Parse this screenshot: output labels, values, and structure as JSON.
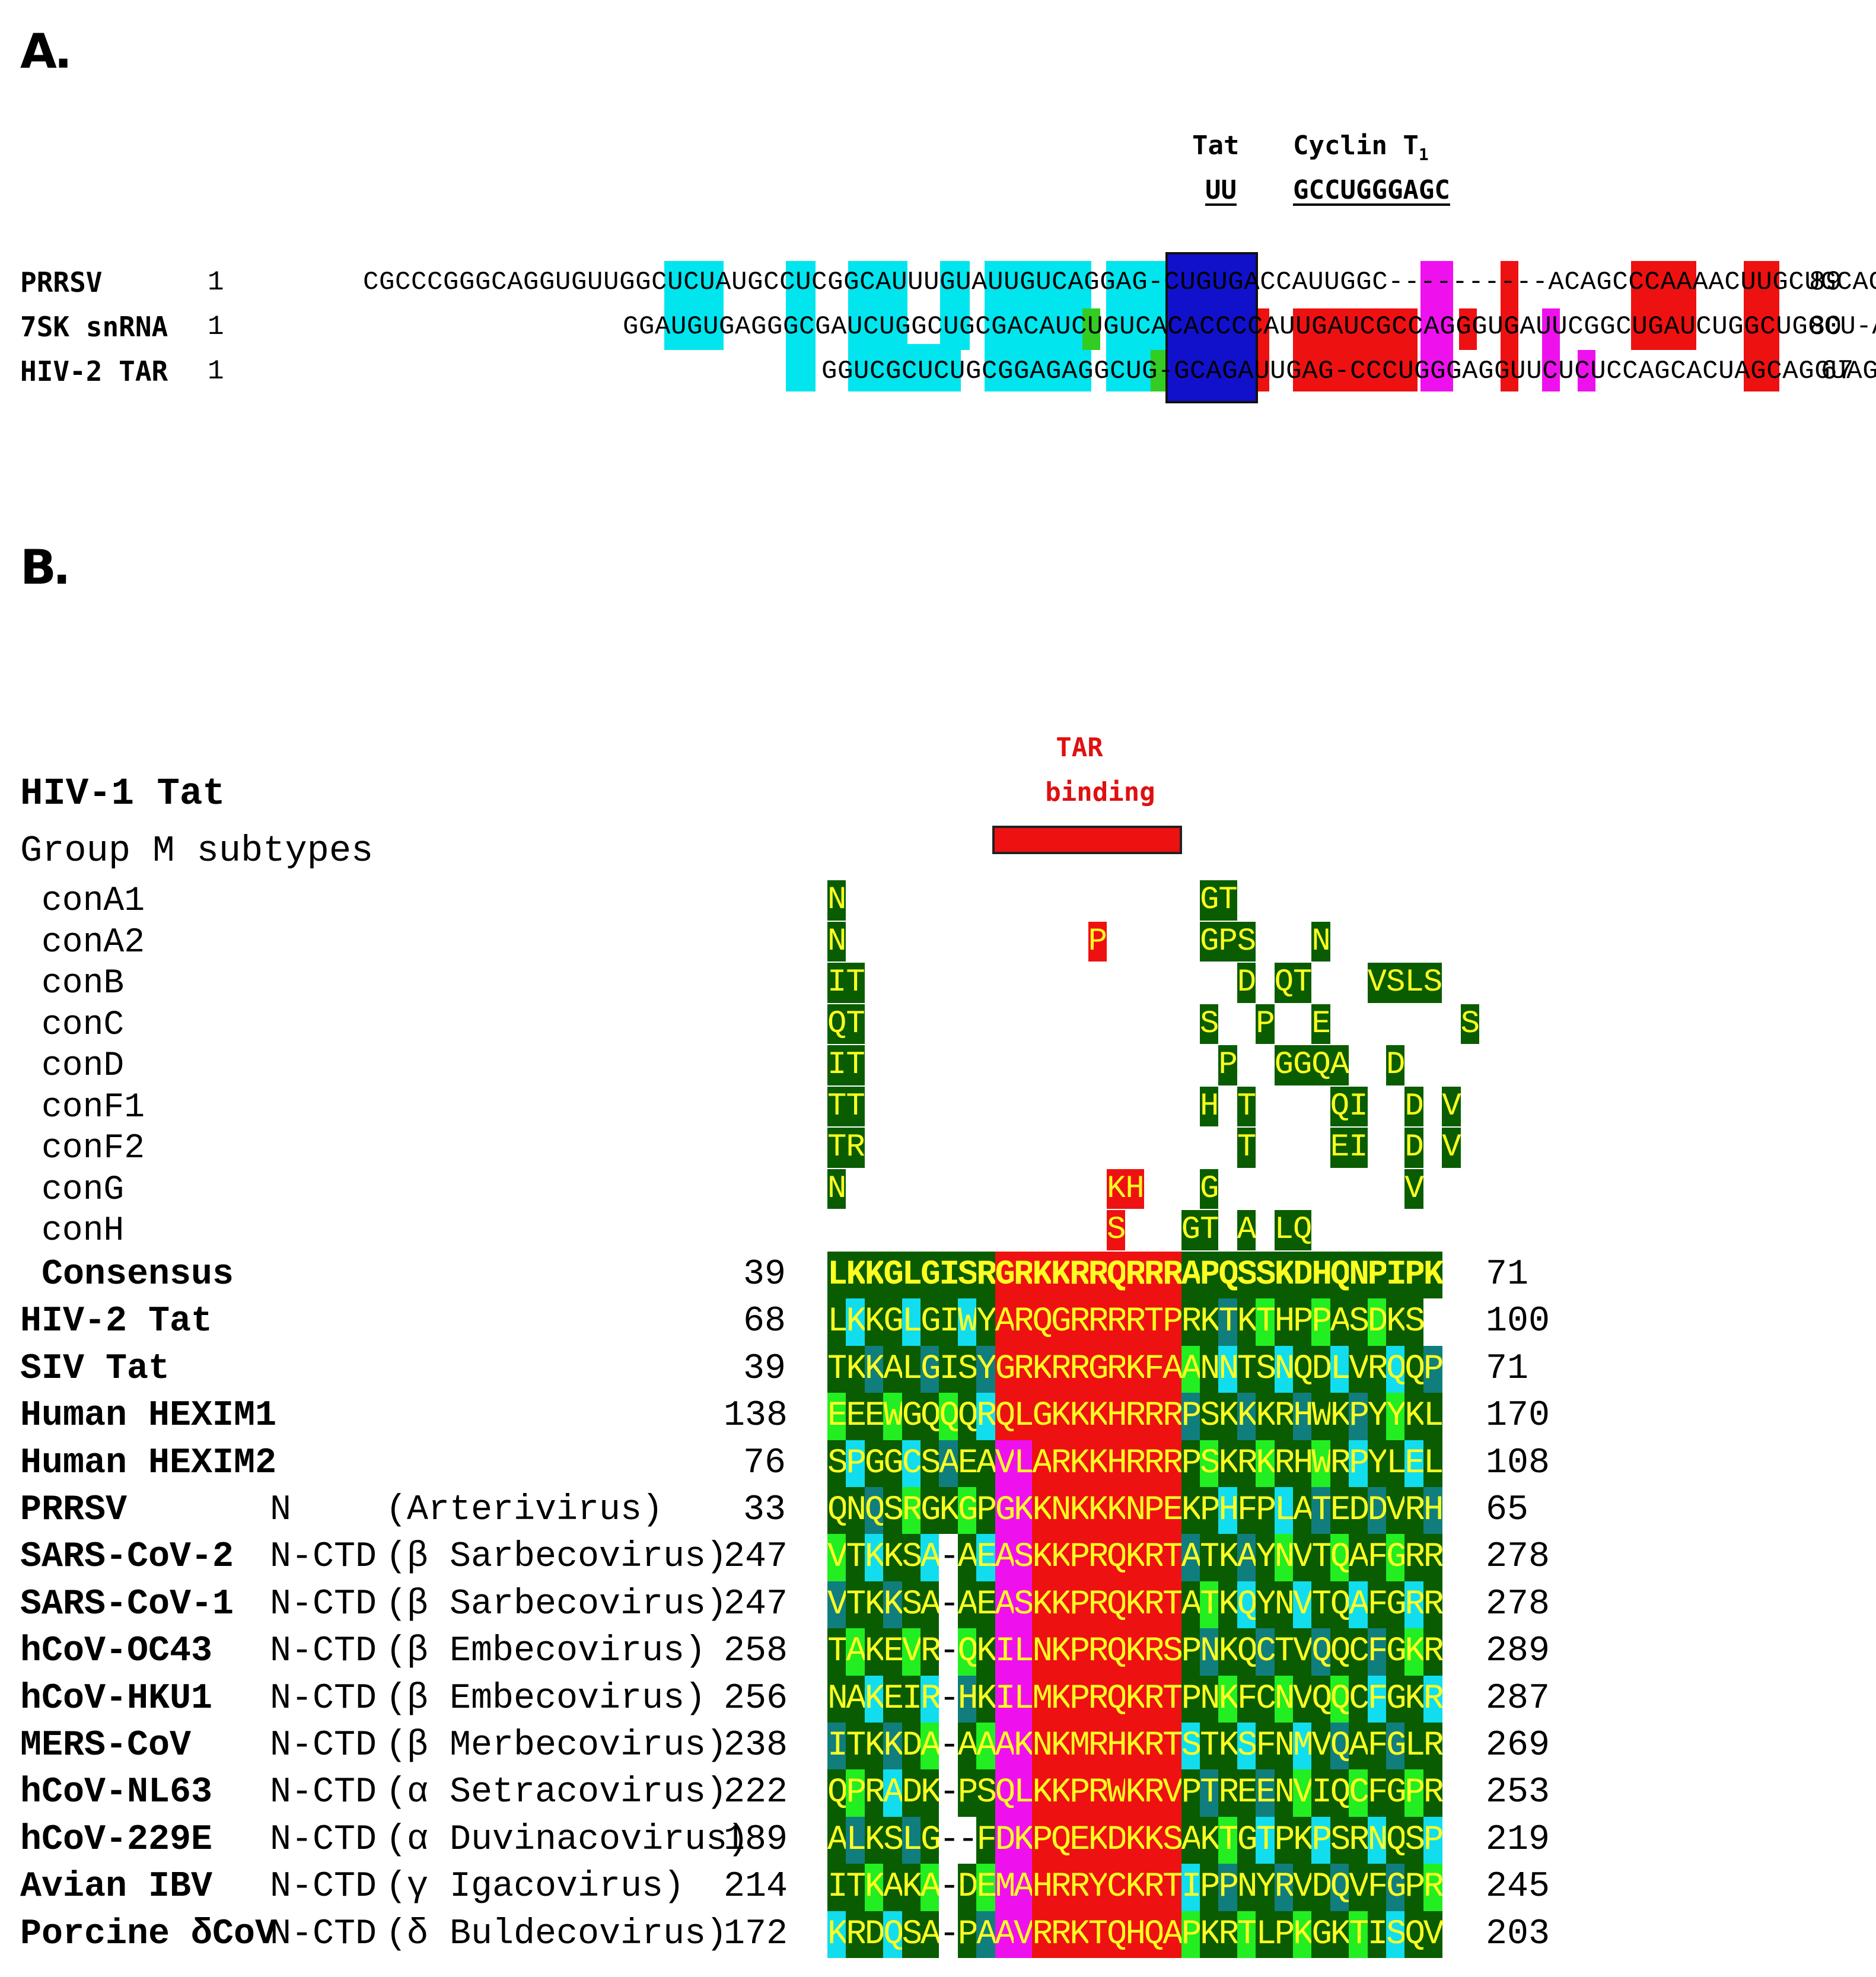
{
  "panel_a": {
    "label": "A.",
    "motifs": {
      "tat_title": "Tat",
      "tat_seq": "UU",
      "cyclin_title": "Cyclin T",
      "cyclin_sub": "1",
      "cyclin_seq": "GCCUGGGAGC"
    },
    "sequences": [
      {
        "name": "PRRSV",
        "start": "1",
        "seq": "CGCCCGGGCAGGUGUUGGCUCUAUGCCUCGGCAUUUGUAUUGUCAGGAG-CUGUGACCAUUGGC----------ACAGCCCAAAACUUGCUGCAC-AGAA",
        "end": "89"
      },
      {
        "name": "7SK snRNA",
        "start": "1",
        "seq": "GGAUGUGAGGGCGAUCUGGCUGCGACAUCUGUCACACCCCAUUGAUCGCCAGGGUGAUUCGGCUGAUCUGGCUGGCU-AGG",
        "end": "80"
      },
      {
        "name": "HIV-2 TAR",
        "start": "1",
        "seq": "GGUCGCUCUGCGGAGAGGCUG-GCAGAUUGAG-CCCUGGGAGGUUCUCUCCAGCACUAGCAGGUAGAGC",
        "end": "67"
      }
    ]
  },
  "panel_b": {
    "label": "B.",
    "tar_label_1": "TAR",
    "tar_label_2": "binding",
    "hiv1_title": "HIV-1 Tat",
    "group_title": "Group M subtypes",
    "subtypes": [
      "conA1",
      "conA2",
      "conB",
      "conC",
      "conD",
      "conF1",
      "conF2",
      "conG",
      "conH"
    ],
    "subtype_residues": [
      "N-------------------GT---------",
      "N-------------P-----GPS---N----",
      "IT--------------------D-QT---VSLS",
      "QT------------------S--P--E-------S",
      "IT-------------------P--GGQA--D--",
      "TT------------------H-T----QI--D-V",
      "TR--------------------T----EI--D-V",
      "N--------------KH---G----------V",
      "---------------S---GT-A-LQ------"
    ],
    "consensus": {
      "name": "Consensus",
      "start": "39",
      "seq": "LKKGLGISRGRKKRRQRRRAPQSSKDHQNPIPK",
      "end": "71"
    },
    "proteins": [
      {
        "name": "HIV-2 Tat",
        "protein": "",
        "genus": "",
        "start": "68",
        "seq": "LKKGLGIWYARQGRRRRTPRKTKTHPPASDKS",
        "end": "100"
      },
      {
        "name": "SIV Tat",
        "protein": "",
        "genus": "",
        "start": "39",
        "seq": "TKKALGISYGRKRRGRKFAANNTSNQDLVRQQP",
        "end": "71"
      },
      {
        "name": "Human HEXIM1",
        "protein": "",
        "genus": "",
        "start": "138",
        "seq": "EEEWGQQQRQLGKKKHRRRPSKKKRHWKPYYKL",
        "end": "170"
      },
      {
        "name": "Human HEXIM2",
        "protein": "",
        "genus": "",
        "start": "76",
        "seq": "SPGGCSAEAVLARKKHRRRPSKRKRHWRPYLEL",
        "end": "108"
      },
      {
        "name": "PRRSV",
        "protein": "N",
        "genus": "(Arterivirus)",
        "start": "33",
        "seq": "QNQSRGKGPGKKNKKKNPEKPHFPLATEDDVRH",
        "end": "65"
      },
      {
        "name": "SARS-CoV-2",
        "protein": "N-CTD",
        "genus": "(β Sarbecovirus)",
        "start": "247",
        "seq": "VTKKSA-AEASKKPRQKRTATKAYNVTQAFGRR",
        "end": "278"
      },
      {
        "name": "SARS-CoV-1",
        "protein": "N-CTD",
        "genus": "(β Sarbecovirus)",
        "start": "247",
        "seq": "VTKKSA-AEASKKPRQKRTATKQYNVTQAFGRR",
        "end": "278"
      },
      {
        "name": "hCoV-OC43",
        "protein": "N-CTD",
        "genus": "(β Embecovirus)",
        "start": "258",
        "seq": "TAKEVR-QKILNKPRQKRSPNKQCTVQQCFGKR",
        "end": "289"
      },
      {
        "name": "hCoV-HKU1",
        "protein": "N-CTD",
        "genus": "(β Embecovirus)",
        "start": "256",
        "seq": "NAKEIR-HKILMKPRQKRTPNKFCNVQQCFGKR",
        "end": "287"
      },
      {
        "name": "MERS-CoV",
        "protein": "N-CTD",
        "genus": "(β Merbecovirus)",
        "start": "238",
        "seq": "ITKKDA-AAAKNKMRHKRTSTKSFNMVQAFGLR",
        "end": "269"
      },
      {
        "name": "hCoV-NL63",
        "protein": "N-CTD",
        "genus": "(α Setracovirus)",
        "start": "222",
        "seq": "QPRADK-PSQLKKPRWKRVPTREENVIQCFGPR",
        "end": "253"
      },
      {
        "name": "hCoV-229E",
        "protein": "N-CTD",
        "genus": "(α Duvinacovirus)",
        "start": "189",
        "seq": "ALKSLG--FDKPQEKDKKSAKTGTPKPSRNQSP",
        "end": "219"
      },
      {
        "name": "Avian IBV",
        "protein": "N-CTD",
        "genus": "(γ Igacovirus)",
        "start": "214",
        "seq": "ITKAKA-DEMAHRRYCKRTIPPNYRVDQVFGPR",
        "end": "245"
      },
      {
        "name": "Porcine δCoV",
        "protein": "N-CTD",
        "genus": "(δ Buldecovirus)",
        "start": "172",
        "seq": "KRDQSA-PAAVRRKTQHQAPKRTLPKGKTISQV",
        "end": "203"
      }
    ],
    "colors": {
      "dark_green": "#0a5c00",
      "red": "#ee1111",
      "magenta": "#ee11ee",
      "bright_green": "#22ee22",
      "teal": "#117e7e",
      "cyan": "#11ddee",
      "yellow_text": "#ffff22"
    }
  }
}
